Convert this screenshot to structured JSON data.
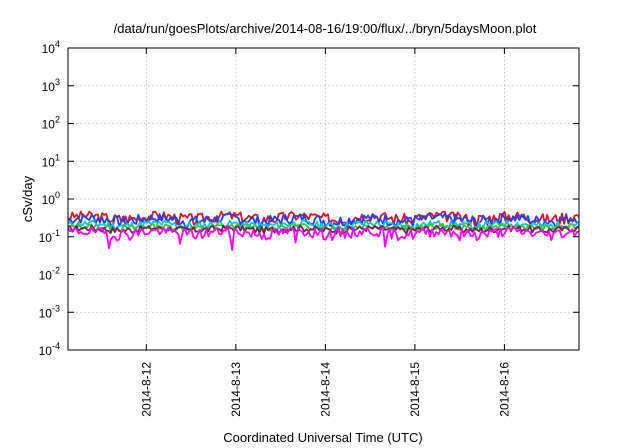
{
  "chart_data": {
    "type": "line",
    "title": "/data/run/goesPlots/archive/2014-08-16/19:00/flux/../bryn/5daysMoon.plot",
    "xlabel": "Coordinated Universal Time (UTC)",
    "ylabel": "cSv/day",
    "yscale": "log",
    "ylim": [
      0.0001,
      10000
    ],
    "x_range": [
      "2014-08-11 03:00",
      "2014-08-16 20:00"
    ],
    "grid": true,
    "legend": "none",
    "y_ticks": [
      {
        "base": "10",
        "exp": "-4",
        "value": 0.0001
      },
      {
        "base": "10",
        "exp": "-3",
        "value": 0.001
      },
      {
        "base": "10",
        "exp": "-2",
        "value": 0.01
      },
      {
        "base": "10",
        "exp": "-1",
        "value": 0.1
      },
      {
        "base": "10",
        "exp": "0",
        "value": 1
      },
      {
        "base": "10",
        "exp": "1",
        "value": 10
      },
      {
        "base": "10",
        "exp": "2",
        "value": 100
      },
      {
        "base": "10",
        "exp": "3",
        "value": 1000
      },
      {
        "base": "10",
        "exp": "4",
        "value": 10000
      }
    ],
    "x_ticks": [
      {
        "label": "2014-8-12",
        "value": "2014-08-12 00:00"
      },
      {
        "label": "2014-8-13",
        "value": "2014-08-13 00:00"
      },
      {
        "label": "2014-8-14",
        "value": "2014-08-14 00:00"
      },
      {
        "label": "2014-8-15",
        "value": "2014-08-15 00:00"
      },
      {
        "label": "2014-8-16",
        "value": "2014-08-16 00:00"
      }
    ],
    "series": [
      {
        "color": "#e0101f",
        "base": 0.33,
        "amp": 0.14,
        "seed": 3
      },
      {
        "color": "#1f3fff",
        "base": 0.29,
        "amp": 0.12,
        "seed": 7
      },
      {
        "color": "#00c8d8",
        "base": 0.21,
        "amp": 0.06,
        "seed": 11
      },
      {
        "color": "#33c933",
        "base": 0.18,
        "amp": 0.04,
        "seed": 13
      },
      {
        "color": "#7a1f4a",
        "base": 0.16,
        "amp": 0.04,
        "seed": 17
      },
      {
        "color": "#ff00ff",
        "base": 0.13,
        "amp": 0.05,
        "seed": 19,
        "dips": [
          {
            "t": "2014-08-11 14:00",
            "v": 0.05
          },
          {
            "t": "2014-08-12 09:00",
            "v": 0.065
          },
          {
            "t": "2014-08-12 23:00",
            "v": 0.045
          },
          {
            "t": "2014-08-13 16:00",
            "v": 0.07
          },
          {
            "t": "2014-08-14 16:00",
            "v": 0.055
          },
          {
            "t": "2014-08-15 12:00",
            "v": 0.08
          }
        ]
      }
    ]
  }
}
